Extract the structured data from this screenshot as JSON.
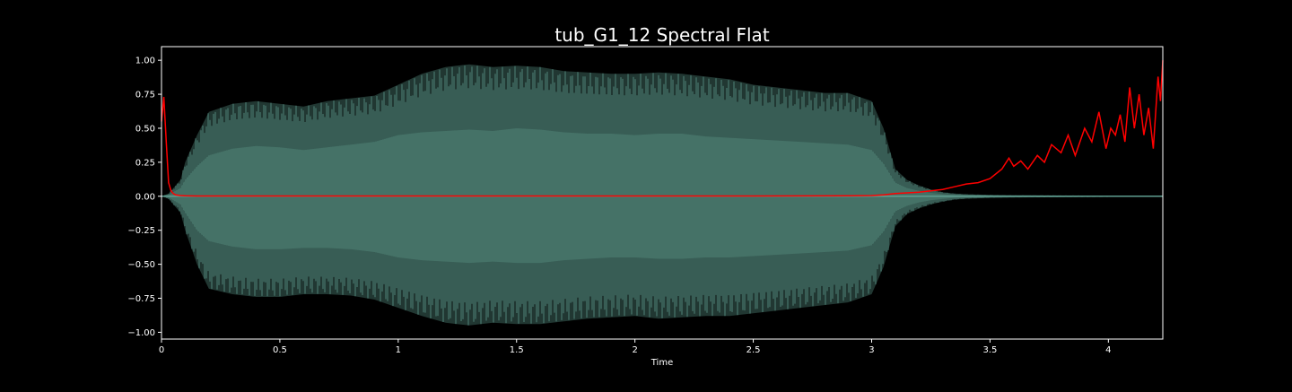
{
  "chart_data": {
    "type": "line",
    "title": "tub_G1_12 Spectral Flat",
    "xlabel": "Time",
    "ylabel": "",
    "xlim": [
      0,
      4.23
    ],
    "ylim": [
      -1.05,
      1.1
    ],
    "x_ticks": [
      {
        "value": 0,
        "label": "0"
      },
      {
        "value": 0.5,
        "label": "0.5"
      },
      {
        "value": 1,
        "label": "1"
      },
      {
        "value": 1.5,
        "label": "1.5"
      },
      {
        "value": 2,
        "label": "2"
      },
      {
        "value": 2.5,
        "label": "2.5"
      },
      {
        "value": 3,
        "label": "3"
      },
      {
        "value": 3.5,
        "label": "3.5"
      },
      {
        "value": 4,
        "label": "4"
      }
    ],
    "y_ticks": [
      {
        "value": 1.0,
        "label": "1.00"
      },
      {
        "value": 0.75,
        "label": "0.75"
      },
      {
        "value": 0.5,
        "label": "0.50"
      },
      {
        "value": 0.25,
        "label": "0.25"
      },
      {
        "value": 0.0,
        "label": "0.00"
      },
      {
        "value": -0.25,
        "label": "−0.25"
      },
      {
        "value": -0.5,
        "label": "−0.50"
      },
      {
        "value": -0.75,
        "label": "−0.75"
      },
      {
        "value": -1.0,
        "label": "−1.00"
      }
    ],
    "grid": false,
    "colors": {
      "background": "#000000",
      "axes": "#ffffff",
      "waveform": "#5f9e90",
      "waveform_inner": "#4a7a6e",
      "spectral_flatness": "#ff0000"
    },
    "series": [
      {
        "kind": "waveform-envelope",
        "x": [
          0.0,
          0.03,
          0.05,
          0.08,
          0.1,
          0.15,
          0.2,
          0.3,
          0.4,
          0.5,
          0.6,
          0.7,
          0.8,
          0.9,
          1.0,
          1.1,
          1.2,
          1.3,
          1.4,
          1.5,
          1.6,
          1.7,
          1.8,
          1.9,
          2.0,
          2.1,
          2.2,
          2.3,
          2.4,
          2.5,
          2.6,
          2.7,
          2.8,
          2.9,
          3.0,
          3.05,
          3.1,
          3.15,
          3.2,
          3.25,
          3.3,
          3.35,
          3.4,
          3.5,
          3.6,
          3.8,
          4.0,
          4.23
        ],
        "upper": [
          0.0,
          0.02,
          0.06,
          0.12,
          0.25,
          0.45,
          0.62,
          0.68,
          0.7,
          0.68,
          0.66,
          0.7,
          0.72,
          0.74,
          0.82,
          0.9,
          0.95,
          0.97,
          0.95,
          0.96,
          0.95,
          0.92,
          0.91,
          0.9,
          0.9,
          0.91,
          0.9,
          0.88,
          0.86,
          0.82,
          0.8,
          0.78,
          0.76,
          0.76,
          0.7,
          0.5,
          0.2,
          0.12,
          0.08,
          0.05,
          0.03,
          0.02,
          0.015,
          0.01,
          0.008,
          0.006,
          0.005,
          0.004
        ],
        "lower": [
          0.0,
          -0.02,
          -0.06,
          -0.12,
          -0.25,
          -0.5,
          -0.68,
          -0.72,
          -0.74,
          -0.74,
          -0.72,
          -0.72,
          -0.73,
          -0.76,
          -0.82,
          -0.88,
          -0.93,
          -0.95,
          -0.93,
          -0.94,
          -0.94,
          -0.92,
          -0.9,
          -0.89,
          -0.88,
          -0.9,
          -0.89,
          -0.88,
          -0.88,
          -0.86,
          -0.84,
          -0.82,
          -0.8,
          -0.78,
          -0.72,
          -0.52,
          -0.22,
          -0.13,
          -0.09,
          -0.06,
          -0.04,
          -0.025,
          -0.018,
          -0.012,
          -0.009,
          -0.007,
          -0.005,
          -0.004
        ],
        "inner_upper": [
          0.0,
          0.01,
          0.03,
          0.06,
          0.12,
          0.22,
          0.3,
          0.35,
          0.37,
          0.36,
          0.34,
          0.36,
          0.38,
          0.4,
          0.45,
          0.47,
          0.48,
          0.49,
          0.48,
          0.5,
          0.49,
          0.47,
          0.46,
          0.46,
          0.45,
          0.46,
          0.46,
          0.44,
          0.43,
          0.42,
          0.41,
          0.4,
          0.39,
          0.38,
          0.34,
          0.24,
          0.1,
          0.06,
          0.04,
          0.025,
          0.015,
          0.01,
          0.008,
          0.005,
          0.004,
          0.003,
          0.002,
          0.002
        ],
        "inner_lower": [
          0.0,
          -0.01,
          -0.03,
          -0.06,
          -0.12,
          -0.25,
          -0.33,
          -0.37,
          -0.39,
          -0.39,
          -0.38,
          -0.38,
          -0.39,
          -0.41,
          -0.45,
          -0.47,
          -0.48,
          -0.49,
          -0.48,
          -0.49,
          -0.49,
          -0.47,
          -0.46,
          -0.45,
          -0.45,
          -0.46,
          -0.46,
          -0.45,
          -0.45,
          -0.44,
          -0.43,
          -0.42,
          -0.41,
          -0.4,
          -0.36,
          -0.26,
          -0.11,
          -0.07,
          -0.045,
          -0.03,
          -0.02,
          -0.012,
          -0.009,
          -0.006,
          -0.005,
          -0.004,
          -0.003,
          -0.002
        ]
      },
      {
        "kind": "line",
        "x": [
          0.0,
          0.01,
          0.02,
          0.03,
          0.04,
          0.05,
          0.06,
          0.08,
          0.1,
          0.15,
          0.5,
          1.0,
          1.5,
          2.0,
          2.5,
          2.9,
          3.0,
          3.05,
          3.1,
          3.15,
          3.2,
          3.25,
          3.3,
          3.35,
          3.4,
          3.45,
          3.5,
          3.55,
          3.58,
          3.6,
          3.63,
          3.66,
          3.7,
          3.73,
          3.76,
          3.8,
          3.83,
          3.86,
          3.9,
          3.93,
          3.96,
          3.99,
          4.01,
          4.03,
          4.05,
          4.07,
          4.09,
          4.11,
          4.13,
          4.15,
          4.17,
          4.19,
          4.21,
          4.22,
          4.23
        ],
        "y": [
          0.55,
          0.73,
          0.4,
          0.1,
          0.04,
          0.02,
          0.01,
          0.005,
          0.003,
          0.002,
          0.002,
          0.002,
          0.002,
          0.002,
          0.002,
          0.003,
          0.005,
          0.01,
          0.02,
          0.025,
          0.03,
          0.04,
          0.05,
          0.07,
          0.09,
          0.1,
          0.13,
          0.2,
          0.28,
          0.22,
          0.26,
          0.2,
          0.3,
          0.25,
          0.38,
          0.32,
          0.45,
          0.3,
          0.5,
          0.4,
          0.62,
          0.35,
          0.5,
          0.45,
          0.6,
          0.4,
          0.8,
          0.5,
          0.75,
          0.45,
          0.65,
          0.35,
          0.88,
          0.7,
          1.0
        ]
      }
    ]
  }
}
